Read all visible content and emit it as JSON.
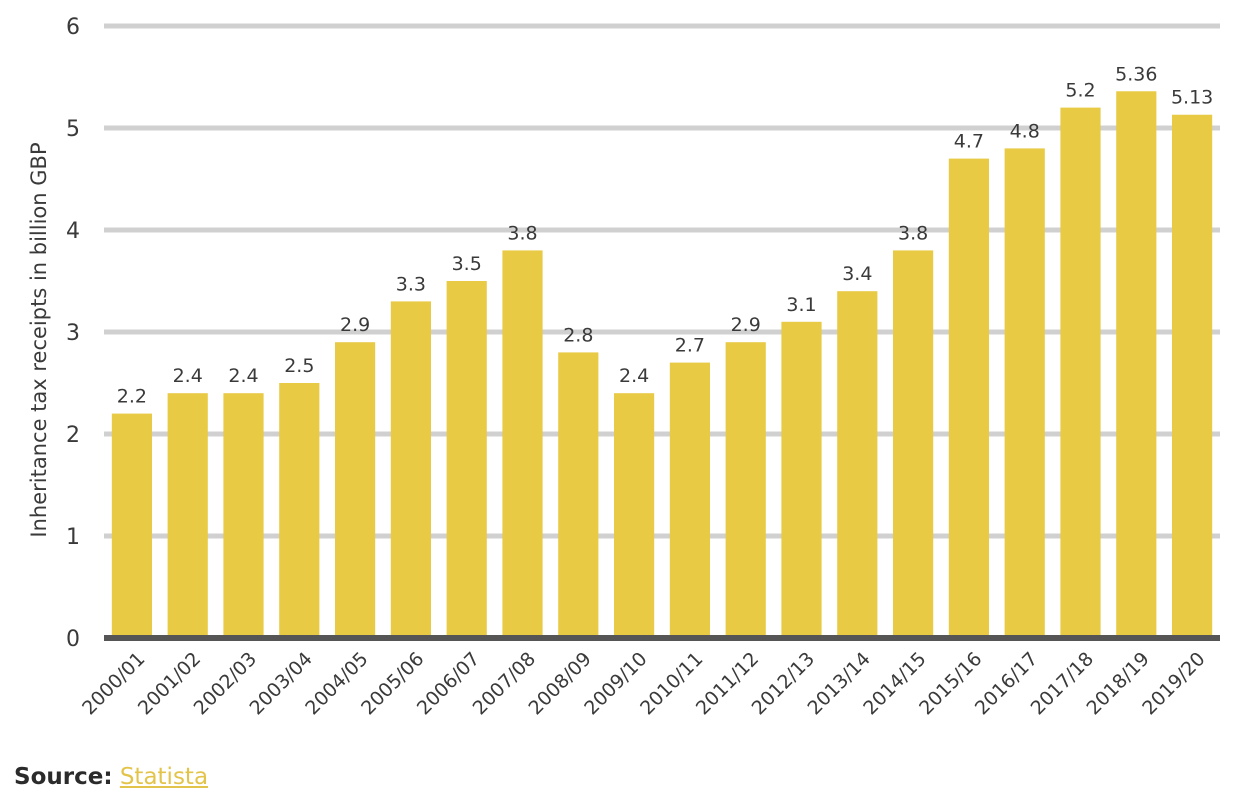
{
  "chart_data": {
    "type": "bar",
    "categories": [
      "2000/01",
      "2001/02",
      "2002/03",
      "2003/04",
      "2004/05",
      "2005/06",
      "2006/07",
      "2007/08",
      "2008/09",
      "2009/10",
      "2010/11",
      "2011/12",
      "2012/13",
      "2013/14",
      "2014/15",
      "2015/16",
      "2016/17",
      "2017/18",
      "2018/19",
      "2019/20"
    ],
    "values": [
      2.2,
      2.4,
      2.4,
      2.5,
      2.9,
      3.3,
      3.5,
      3.8,
      2.8,
      2.4,
      2.7,
      2.9,
      3.1,
      3.4,
      3.8,
      4.7,
      4.8,
      5.2,
      5.36,
      5.13
    ],
    "value_labels": [
      "2.2",
      "2.4",
      "2.4",
      "2.5",
      "2.9",
      "3.3",
      "3.5",
      "3.8",
      "2.8",
      "2.4",
      "2.7",
      "2.9",
      "3.1",
      "3.4",
      "3.8",
      "4.7",
      "4.8",
      "5.2",
      "5.36",
      "5.13"
    ],
    "title": "",
    "xlabel": "",
    "ylabel": "Inheritance tax receipts in billion GBP",
    "ylim": [
      0,
      6
    ],
    "yticks": [
      0,
      1,
      2,
      3,
      4,
      5,
      6
    ],
    "grid": true,
    "bar_color": "#e8ca45",
    "grid_color": "#d0d0d0",
    "baseline_color": "#555555"
  },
  "source": {
    "label": "Source:",
    "link_text": "Statista"
  }
}
